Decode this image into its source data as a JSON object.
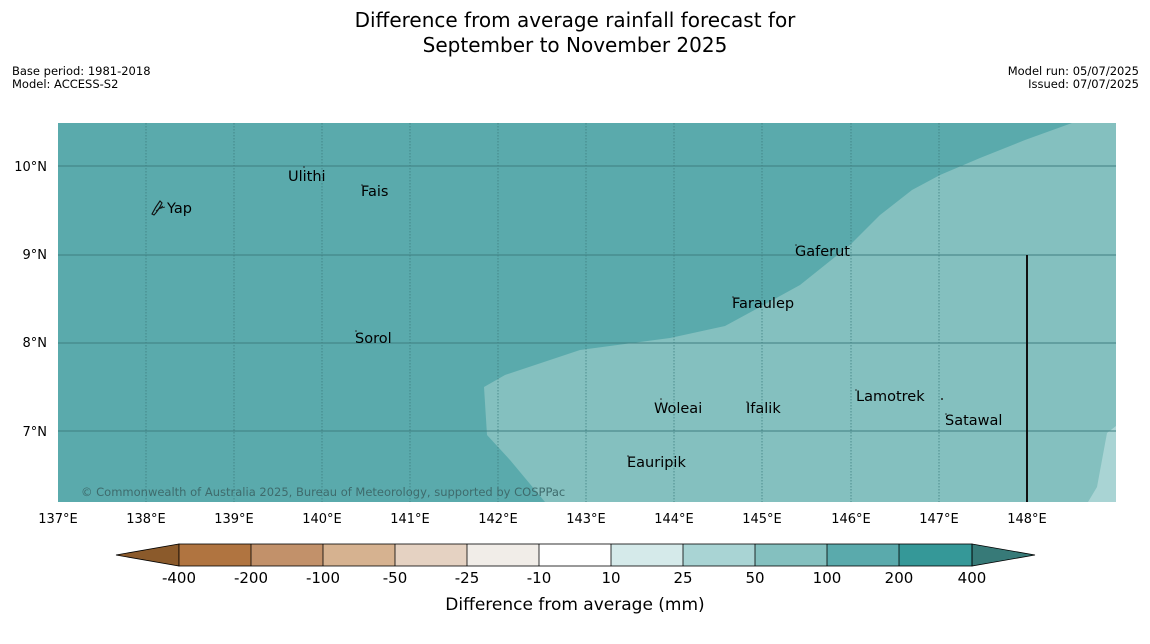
{
  "title": {
    "line1": "Difference from average rainfall forecast for",
    "line2": "September to November 2025"
  },
  "meta_left": {
    "base_period": "Base period: 1981-2018",
    "model": "Model: ACCESS-S2"
  },
  "meta_right": {
    "model_run": "Model run: 05/07/2025",
    "issued": "Issued: 07/07/2025"
  },
  "map": {
    "lon_labels": [
      "137°E",
      "138°E",
      "139°E",
      "140°E",
      "141°E",
      "142°E",
      "143°E",
      "144°E",
      "145°E",
      "146°E",
      "147°E",
      "148°E"
    ],
    "lat_labels": [
      "10°N",
      "9°N",
      "8°N",
      "7°N"
    ],
    "places": {
      "ulithi": "Ulithi",
      "fais": "Fais",
      "yap": "Yap",
      "gaferut": "Gaferut",
      "faraulep": "Faraulep",
      "sorol": "Sorol",
      "woleai": "Woleai",
      "ifalik": "Ifalik",
      "lamotrek": "Lamotrek",
      "satawal": "Satawal",
      "eauripik": "Eauripik"
    },
    "copyright": "© Commonwealth of Australia 2025, Bureau of Meteorology, supported by COSPPac",
    "category_colors": {
      "50_to_100": "#84c0bf",
      "100_to_200": "#5aaaac",
      "25_to_50": "#a9d4d4"
    }
  },
  "colorbar": {
    "label": "Difference from average (mm)",
    "ticks": [
      "-400",
      "-200",
      "-100",
      "-50",
      "-25",
      "-10",
      "10",
      "25",
      "50",
      "100",
      "200",
      "400"
    ],
    "colors": [
      "#8b5a2b",
      "#b07440",
      "#c2916a",
      "#d6b290",
      "#e5d2c2",
      "#f1ede8",
      "#ffffff",
      "#d5eaea",
      "#a9d4d4",
      "#84c0bf",
      "#5aaaac",
      "#359898",
      "#377a78"
    ]
  }
}
